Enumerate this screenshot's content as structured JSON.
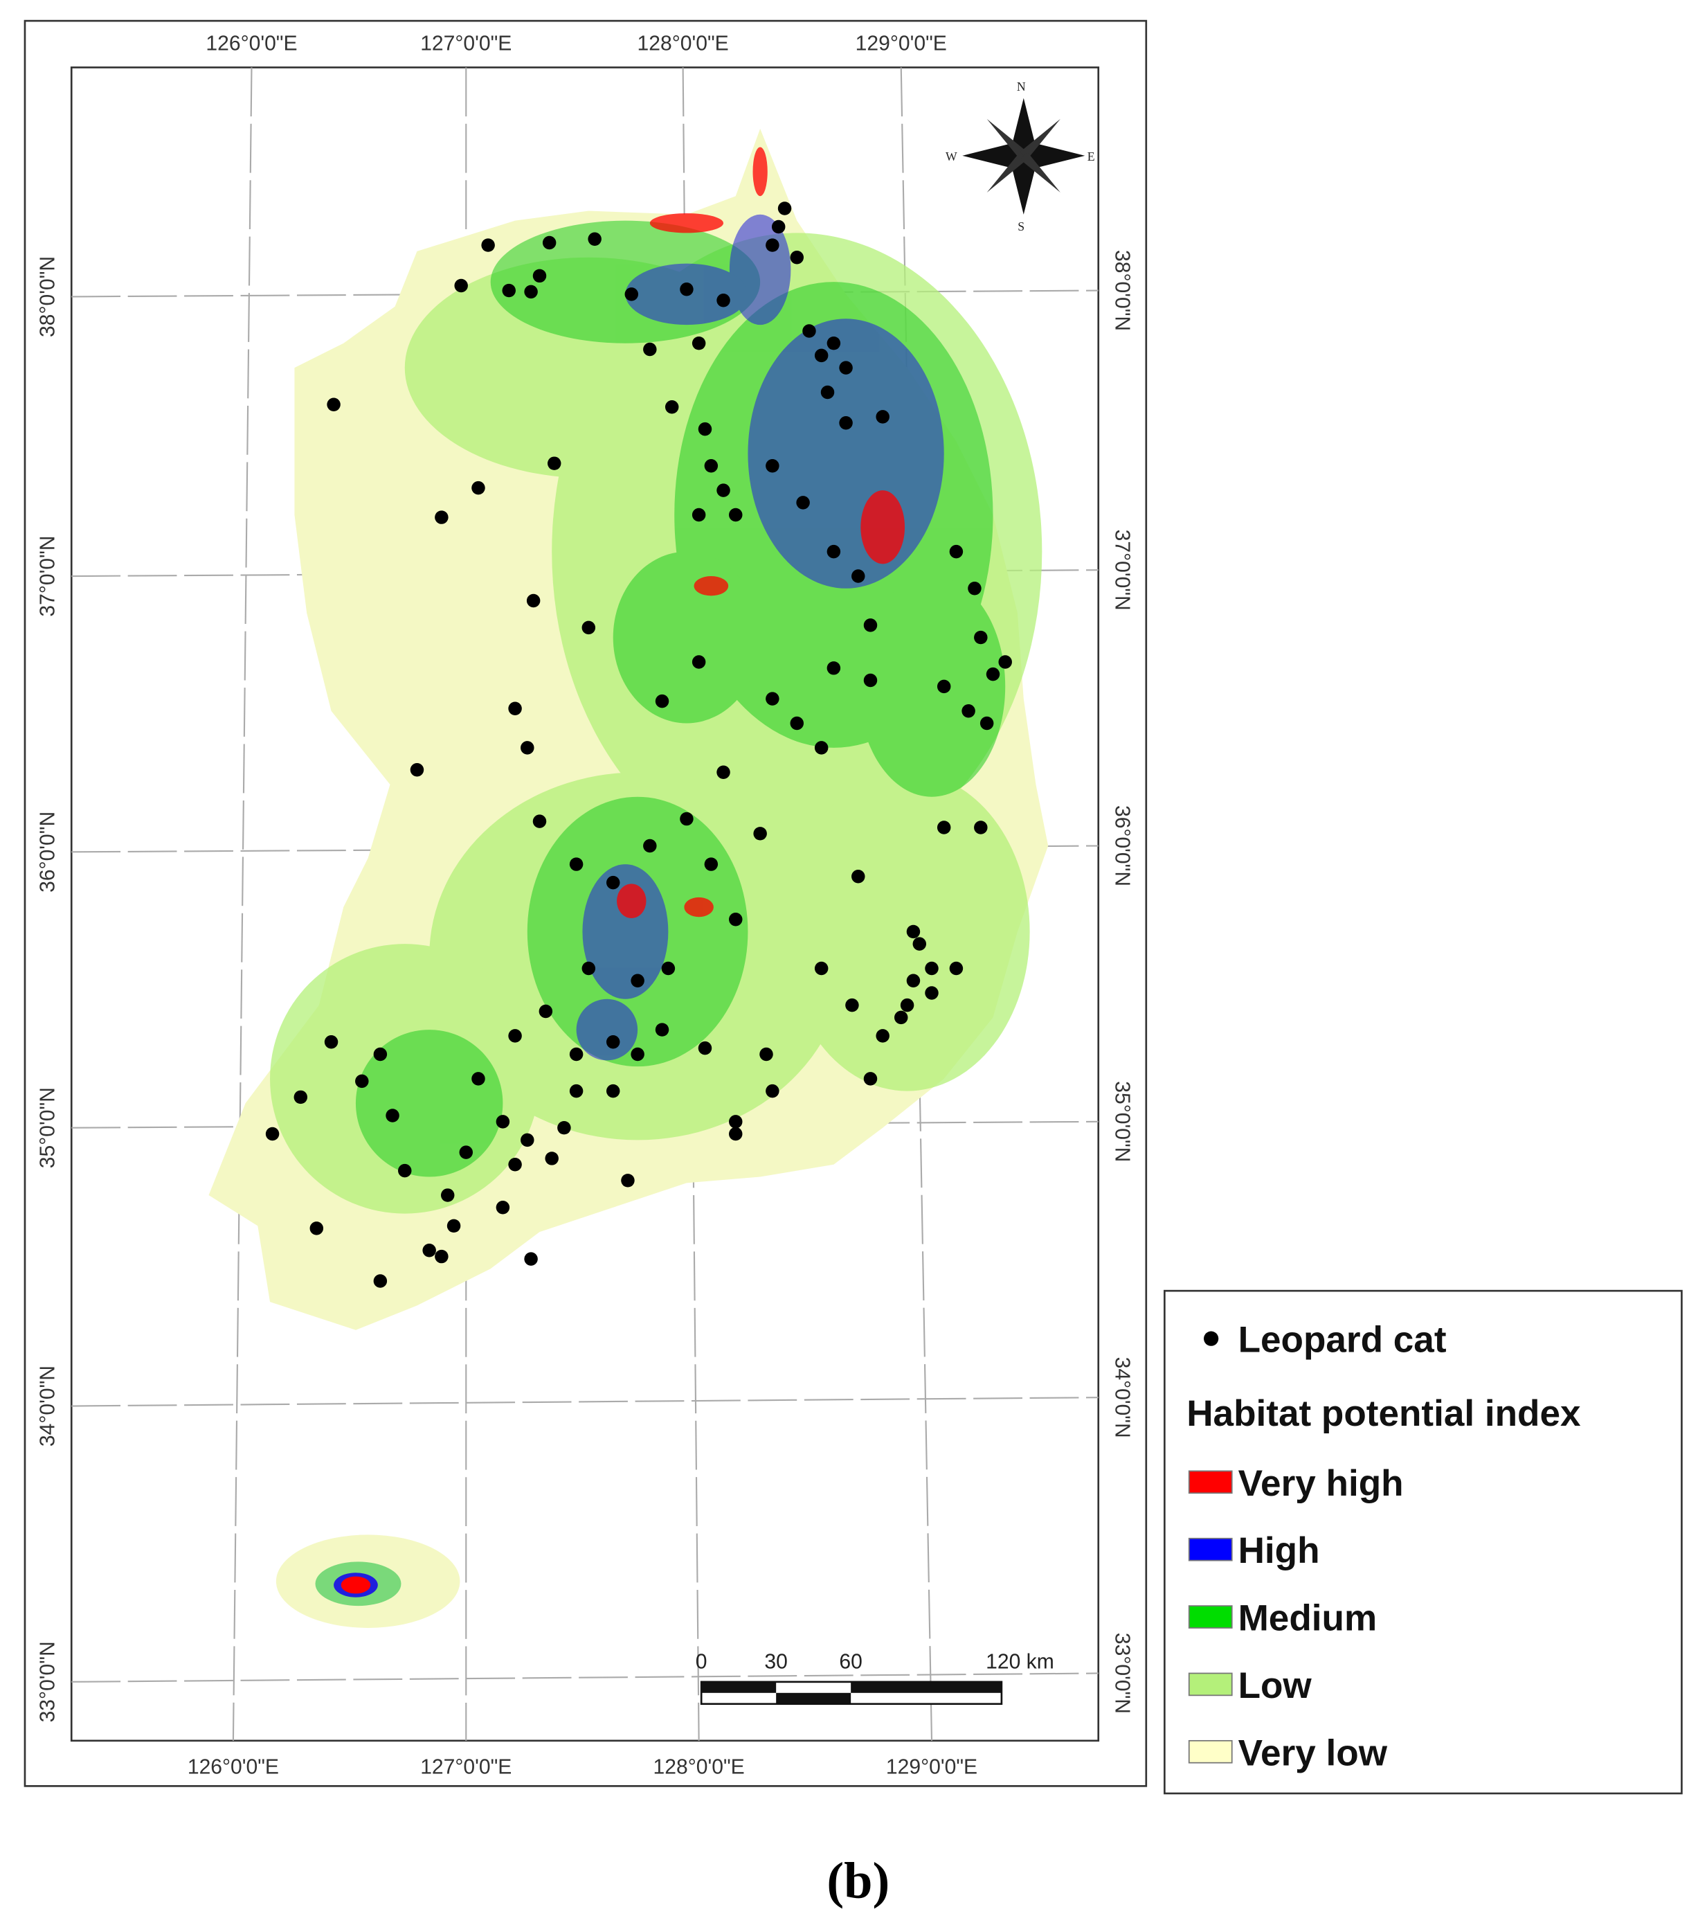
{
  "map": {
    "top_longitudes": [
      "126°0'0\"E",
      "127°0'0\"E",
      "128°0'0\"E",
      "129°0'0\"E"
    ],
    "bottom_longitudes": [
      "126°0'0\"E",
      "127°0'0\"E",
      "128°0'0\"E",
      "129°0'0\"E"
    ],
    "left_latitudes": [
      "38°0'0\"N",
      "37°0'0\"N",
      "36°0'0\"N",
      "35°0'0\"N",
      "34°0'0\"N",
      "33°0'0\"N"
    ],
    "right_latitudes": [
      "38°0'0\"N",
      "37°0'0\"N",
      "36°0'0\"N",
      "35°0'0\"N",
      "34°0'0\"N",
      "33°0'0\"N"
    ],
    "compass": {
      "n": "N",
      "e": "E",
      "s": "S",
      "w": "W"
    },
    "scale_bar": [
      "0",
      "30",
      "60",
      "120 km"
    ],
    "legend": {
      "point_label": "Leopard cat",
      "title": "Habitat potential index",
      "classes": [
        {
          "label": "Very high",
          "color": "#ff0000"
        },
        {
          "label": "High",
          "color": "#0000ff"
        },
        {
          "label": "Medium",
          "color": "#00dd00"
        },
        {
          "label": "Low",
          "color": "#b4f07a"
        },
        {
          "label": "Very low",
          "color": "#ffffc8"
        }
      ]
    }
  },
  "caption": "(b)"
}
